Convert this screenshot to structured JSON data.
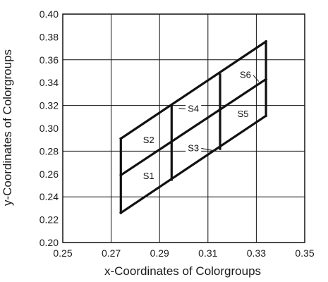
{
  "chart_data": {
    "type": "line",
    "xlabel": "x-Coordinates of Colorgroups",
    "ylabel": "y-Coordinates of Colorgroups",
    "xlim": [
      0.25,
      0.35
    ],
    "ylim": [
      0.2,
      0.4
    ],
    "xticks": [
      "0.25",
      "0.27",
      "0.29",
      "0.31",
      "0.33",
      "0.35"
    ],
    "yticks": [
      "0.20",
      "0.22",
      "0.24",
      "0.26",
      "0.28",
      "0.30",
      "0.32",
      "0.34",
      "0.36",
      "0.38",
      "0.40"
    ],
    "xtick_values": [
      0.25,
      0.27,
      0.29,
      0.31,
      0.33,
      0.35
    ],
    "ytick_values": [
      0.2,
      0.22,
      0.24,
      0.26,
      0.28,
      0.3,
      0.32,
      0.34,
      0.36,
      0.38,
      0.4
    ],
    "grid": true,
    "boundaries": [
      {
        "x": [
          0.274,
          0.334
        ],
        "y": [
          0.226,
          0.311
        ]
      },
      {
        "x": [
          0.274,
          0.334
        ],
        "y": [
          0.259,
          0.343
        ]
      },
      {
        "x": [
          0.274,
          0.334
        ],
        "y": [
          0.291,
          0.376
        ]
      },
      {
        "x": [
          0.274,
          0.274
        ],
        "y": [
          0.226,
          0.291
        ]
      },
      {
        "x": [
          0.295,
          0.295
        ],
        "y": [
          0.255,
          0.32
        ]
      },
      {
        "x": [
          0.315,
          0.315
        ],
        "y": [
          0.282,
          0.347
        ]
      },
      {
        "x": [
          0.334,
          0.334
        ],
        "y": [
          0.311,
          0.376
        ]
      }
    ],
    "region_labels": [
      {
        "text": "S1",
        "x": 0.2855,
        "y": 0.2555,
        "leader": false
      },
      {
        "text": "S2",
        "x": 0.2855,
        "y": 0.287,
        "leader": false
      },
      {
        "text": "S3",
        "x": 0.304,
        "y": 0.28,
        "leader": true,
        "leader_to": [
          0.3135,
          0.28
        ]
      },
      {
        "text": "S4",
        "x": 0.304,
        "y": 0.3145,
        "leader": true,
        "leader_to": [
          0.298,
          0.3175
        ]
      },
      {
        "text": "S5",
        "x": 0.3245,
        "y": 0.31,
        "leader": false
      },
      {
        "text": "S6",
        "x": 0.3255,
        "y": 0.344,
        "leader": true,
        "leader_to": [
          0.331,
          0.341
        ]
      }
    ]
  }
}
